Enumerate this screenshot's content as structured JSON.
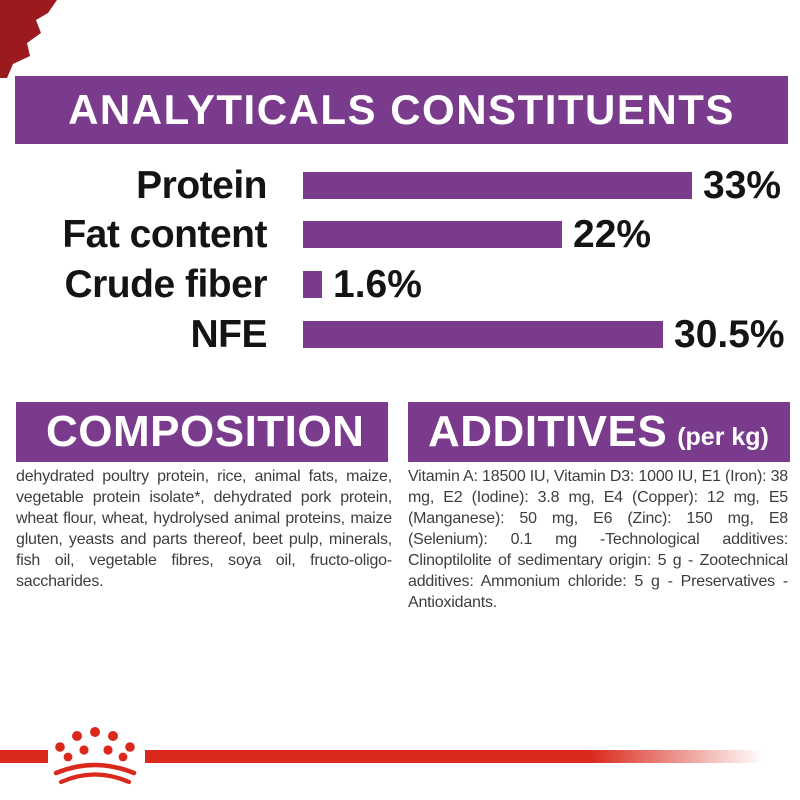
{
  "colors": {
    "purple": "#7a3b8c",
    "red": "#da291c",
    "dark_red_fragment": "#9a1a20",
    "text_black": "#141414",
    "body_gray": "#3d3d3d",
    "white": "#ffffff"
  },
  "analyticals": {
    "title": "ANALYTICALS CONSTITUENTS",
    "chart_data": {
      "type": "bar",
      "orientation": "horizontal",
      "categories": [
        "Protein",
        "Fat content",
        "Crude fiber",
        "NFE"
      ],
      "values": [
        33,
        22,
        1.6,
        30.5
      ],
      "value_labels": [
        "33%",
        "22%",
        "1.6%",
        "30.5%"
      ],
      "title": "ANALYTICALS CONSTITUENTS",
      "xlabel": "",
      "ylabel": "",
      "xlim": [
        0,
        33
      ],
      "bar_color": "#7a3b8c",
      "grid": false,
      "legend": "none",
      "rows": [
        {
          "label": "Protein",
          "value": 33,
          "value_label": "33%"
        },
        {
          "label": "Fat content",
          "value": 22,
          "value_label": "22%"
        },
        {
          "label": "Crude fiber",
          "value": 1.6,
          "value_label": "1.6%"
        },
        {
          "label": "NFE",
          "value": 30.5,
          "value_label": "30.5%"
        }
      ]
    }
  },
  "composition": {
    "title": "COMPOSITION",
    "text": "dehydrated poultry protein, rice, animal fats, maize, vegetable protein isolate*, dehydrated pork protein, wheat flour, wheat, hydrolysed animal proteins, maize gluten, yeasts and parts thereof, beet pulp, minerals, fish oil, vegetable fibres, soya oil, fructo-oligo-saccharides."
  },
  "additives": {
    "title": "ADDITIVES",
    "subtitle": "(per kg)",
    "text": "Vitamin A: 18500 IU, Vitamin D3: 1000 IU, E1 (Iron): 38 mg, E2 (Iodine): 3.8 mg, E4 (Copper): 12 mg, E5 (Manganese): 50 mg, E6 (Zinc): 150 mg, E8 (Selenium): 0.1 mg -Technological additives: Clinoptilolite of sedimentary origin: 5 g - Zootechnical additives: Ammonium chloride: 5 g - Preservatives - Antioxidants."
  },
  "footer": {
    "logo": "royal-crown"
  }
}
